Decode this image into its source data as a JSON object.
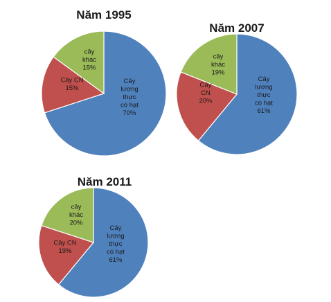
{
  "colors": {
    "cay_luong_thuc": "#4f81bd",
    "cay_cn": "#c0504d",
    "cay_khac": "#9bbb59"
  },
  "chart_data": [
    {
      "type": "pie",
      "title": "Năm 1995",
      "slices": [
        {
          "label": [
            "Cây",
            "lương",
            "thực",
            "có hạt"
          ],
          "value": 70,
          "value_label": "70%",
          "color": "#4f81bd"
        },
        {
          "label": [
            "Cây CN"
          ],
          "value": 15,
          "value_label": "15%",
          "color": "#c0504d"
        },
        {
          "label": [
            "cây",
            "khác"
          ],
          "value": 15,
          "value_label": "15%",
          "color": "#9bbb59"
        }
      ]
    },
    {
      "type": "pie",
      "title": "Năm 2007",
      "slices": [
        {
          "label": [
            "Cây",
            "lương",
            "thực",
            "có hạt"
          ],
          "value": 61,
          "value_label": "61%",
          "color": "#4f81bd"
        },
        {
          "label": [
            "Cây",
            "CN"
          ],
          "value": 20,
          "value_label": "20%",
          "color": "#c0504d"
        },
        {
          "label": [
            "cây",
            "khác"
          ],
          "value": 19,
          "value_label": "19%",
          "color": "#9bbb59"
        }
      ]
    },
    {
      "type": "pie",
      "title": "Năm 2011",
      "slices": [
        {
          "label": [
            "Cây",
            "lương",
            "thực",
            "có hạt"
          ],
          "value": 61,
          "value_label": "61%",
          "color": "#4f81bd"
        },
        {
          "label": [
            "Cây CN"
          ],
          "value": 19,
          "value_label": "19%",
          "color": "#c0504d"
        },
        {
          "label": [
            "cây",
            "khác"
          ],
          "value": 20,
          "value_label": "20%",
          "color": "#9bbb59"
        }
      ]
    }
  ]
}
